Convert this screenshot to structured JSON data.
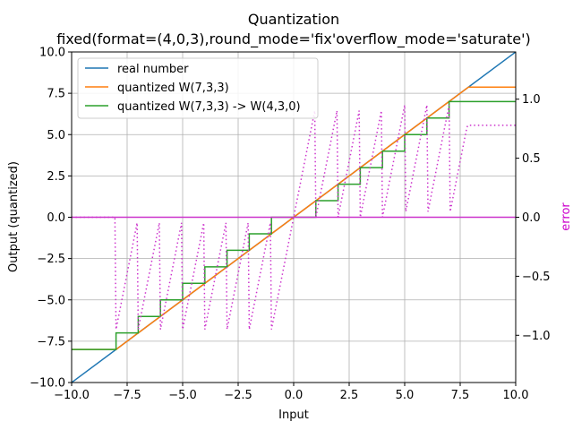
{
  "chart_data": {
    "type": "line",
    "title": [
      "Quantization",
      "fixed(format=(4,0,3),round_mode='fix'overflow_mode='saturate')"
    ],
    "xlabel": "Input",
    "ylabel": "Output (quantized)",
    "y2label": "error",
    "xlim": [
      -10,
      10
    ],
    "ylim": [
      -10,
      10
    ],
    "y2lim": [
      -1.4,
      1.4
    ],
    "xticks": [
      "−10.0",
      "−7.5",
      "−5.0",
      "−2.5",
      "0.0",
      "2.5",
      "5.0",
      "7.5",
      "10.0"
    ],
    "yticks": [
      "−10.0",
      "−7.5",
      "−5.0",
      "−2.5",
      "0.0",
      "2.5",
      "5.0",
      "7.5",
      "10.0"
    ],
    "y2ticks": [
      "−1.0",
      "−0.5",
      "0.0",
      "0.5",
      "1.0"
    ],
    "grid": true,
    "legend_position": "upper-left",
    "series": [
      {
        "name": "real number",
        "color": "#1f77b4",
        "kind": "identity"
      },
      {
        "name": "quantized W(7,3,3)",
        "color": "#ff7f0e",
        "kind": "fine-saturate",
        "step": 0.125,
        "min": -8,
        "max": 7.875
      },
      {
        "name": "quantized W(7,3,3) -> W(4,3,0)",
        "color": "#2ca02c",
        "kind": "integer-saturate",
        "min": -8,
        "max": 7
      },
      {
        "name": "",
        "color": "#cc33cc",
        "kind": "error",
        "axis": "right"
      }
    ]
  }
}
